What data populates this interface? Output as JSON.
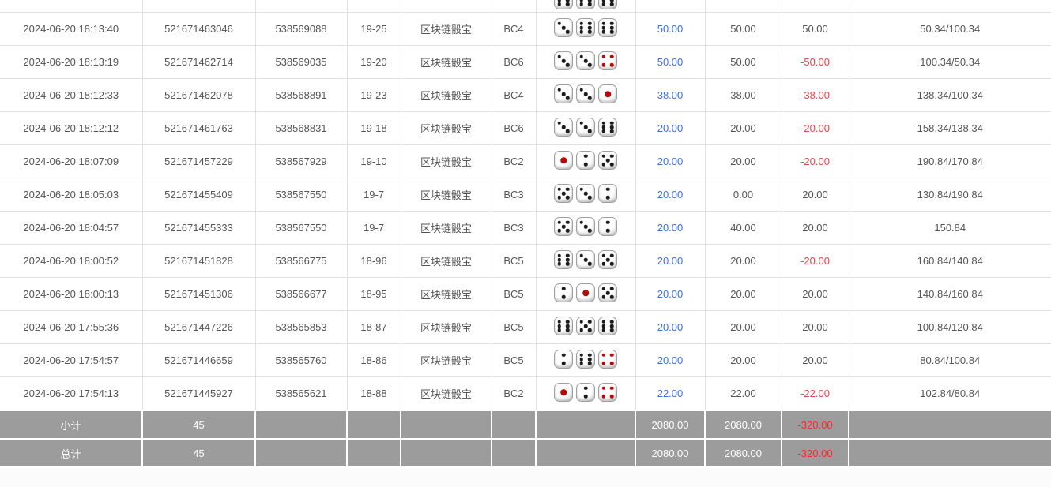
{
  "colors": {
    "link_blue": "#3d6fd8",
    "negative_red": "#e8434a",
    "footer_bg": "#9c9c9c",
    "footer_negative_red": "#ff2626"
  },
  "table": {
    "top_partial_row": {
      "dice": [
        6,
        6,
        6
      ]
    },
    "rows": [
      {
        "time": "2024-06-20 18:13:40",
        "order_id": "521671463046",
        "draw_id": "538569088",
        "round": "19-25",
        "game": "区块链骰宝",
        "bet_type": "BC4",
        "dice": [
          3,
          6,
          6
        ],
        "bet_amount": "50.00",
        "valid_amount": "50.00",
        "win_loss": "50.00",
        "balance": "50.34/100.34"
      },
      {
        "time": "2024-06-20 18:13:19",
        "order_id": "521671462714",
        "draw_id": "538569035",
        "round": "19-20",
        "game": "区块链骰宝",
        "bet_type": "BC6",
        "dice": [
          3,
          3,
          4
        ],
        "bet_amount": "50.00",
        "valid_amount": "50.00",
        "win_loss": "-50.00",
        "balance": "100.34/50.34"
      },
      {
        "time": "2024-06-20 18:12:33",
        "order_id": "521671462078",
        "draw_id": "538568891",
        "round": "19-23",
        "game": "区块链骰宝",
        "bet_type": "BC4",
        "dice": [
          3,
          3,
          1
        ],
        "bet_amount": "38.00",
        "valid_amount": "38.00",
        "win_loss": "-38.00",
        "balance": "138.34/100.34"
      },
      {
        "time": "2024-06-20 18:12:12",
        "order_id": "521671461763",
        "draw_id": "538568831",
        "round": "19-18",
        "game": "区块链骰宝",
        "bet_type": "BC6",
        "dice": [
          3,
          3,
          6
        ],
        "bet_amount": "20.00",
        "valid_amount": "20.00",
        "win_loss": "-20.00",
        "balance": "158.34/138.34"
      },
      {
        "time": "2024-06-20 18:07:09",
        "order_id": "521671457229",
        "draw_id": "538567929",
        "round": "19-10",
        "game": "区块链骰宝",
        "bet_type": "BC2",
        "dice": [
          1,
          2,
          5
        ],
        "bet_amount": "20.00",
        "valid_amount": "20.00",
        "win_loss": "-20.00",
        "balance": "190.84/170.84"
      },
      {
        "time": "2024-06-20 18:05:03",
        "order_id": "521671455409",
        "draw_id": "538567550",
        "round": "19-7",
        "game": "区块链骰宝",
        "bet_type": "BC3",
        "dice": [
          5,
          3,
          2
        ],
        "bet_amount": "20.00",
        "valid_amount": "0.00",
        "win_loss": "20.00",
        "balance": "130.84/190.84"
      },
      {
        "time": "2024-06-20 18:04:57",
        "order_id": "521671455333",
        "draw_id": "538567550",
        "round": "19-7",
        "game": "区块链骰宝",
        "bet_type": "BC3",
        "dice": [
          5,
          3,
          2
        ],
        "bet_amount": "20.00",
        "valid_amount": "40.00",
        "win_loss": "20.00",
        "balance": "150.84"
      },
      {
        "time": "2024-06-20 18:00:52",
        "order_id": "521671451828",
        "draw_id": "538566775",
        "round": "18-96",
        "game": "区块链骰宝",
        "bet_type": "BC5",
        "dice": [
          6,
          3,
          5
        ],
        "bet_amount": "20.00",
        "valid_amount": "20.00",
        "win_loss": "-20.00",
        "balance": "160.84/140.84"
      },
      {
        "time": "2024-06-20 18:00:13",
        "order_id": "521671451306",
        "draw_id": "538566677",
        "round": "18-95",
        "game": "区块链骰宝",
        "bet_type": "BC5",
        "dice": [
          2,
          1,
          5
        ],
        "bet_amount": "20.00",
        "valid_amount": "20.00",
        "win_loss": "20.00",
        "balance": "140.84/160.84"
      },
      {
        "time": "2024-06-20 17:55:36",
        "order_id": "521671447226",
        "draw_id": "538565853",
        "round": "18-87",
        "game": "区块链骰宝",
        "bet_type": "BC5",
        "dice": [
          6,
          5,
          6
        ],
        "bet_amount": "20.00",
        "valid_amount": "20.00",
        "win_loss": "20.00",
        "balance": "100.84/120.84"
      },
      {
        "time": "2024-06-20 17:54:57",
        "order_id": "521671446659",
        "draw_id": "538565760",
        "round": "18-86",
        "game": "区块链骰宝",
        "bet_type": "BC5",
        "dice": [
          2,
          6,
          4
        ],
        "bet_amount": "20.00",
        "valid_amount": "20.00",
        "win_loss": "20.00",
        "balance": "80.84/100.84"
      },
      {
        "time": "2024-06-20 17:54:13",
        "order_id": "521671445927",
        "draw_id": "538565621",
        "round": "18-88",
        "game": "区块链骰宝",
        "bet_type": "BC2",
        "dice": [
          1,
          2,
          4
        ],
        "bet_amount": "22.00",
        "valid_amount": "22.00",
        "win_loss": "-22.00",
        "balance": "102.84/80.84"
      }
    ],
    "footer": [
      {
        "label": "小计",
        "count": "45",
        "bet_total": "2080.00",
        "valid_total": "2080.00",
        "win_loss_total": "-320.00"
      },
      {
        "label": "总计",
        "count": "45",
        "bet_total": "2080.00",
        "valid_total": "2080.00",
        "win_loss_total": "-320.00"
      }
    ]
  }
}
